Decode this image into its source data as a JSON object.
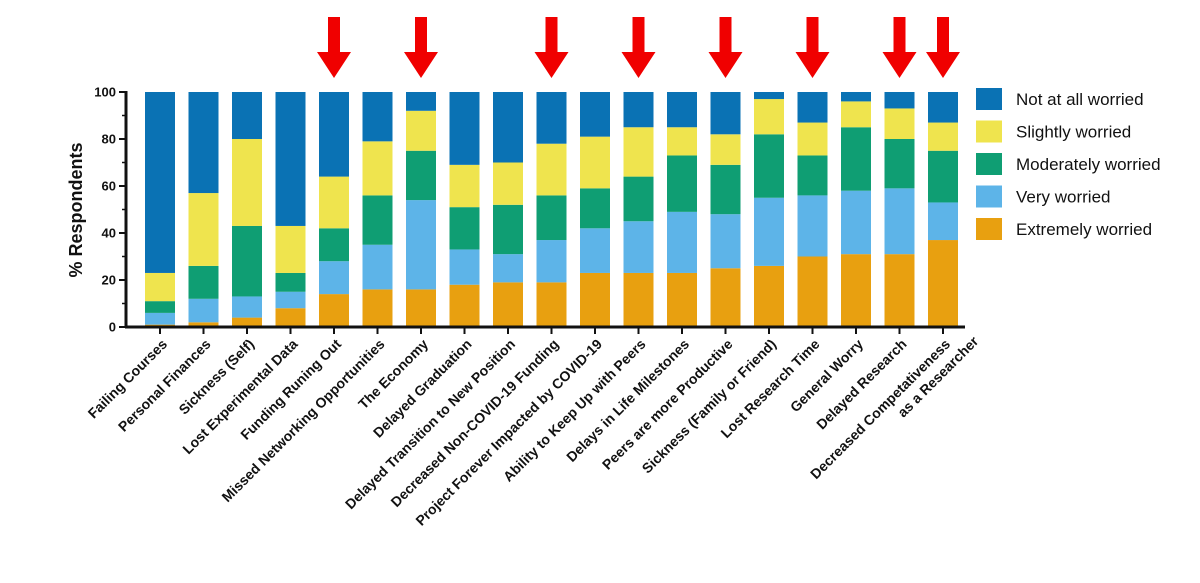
{
  "chart_data": {
    "type": "bar",
    "stacked": true,
    "ylabel": "% Respondents",
    "xlabel": "",
    "ylim": [
      0,
      100
    ],
    "yticks": [
      "0",
      "20",
      "40",
      "60",
      "80",
      "100"
    ],
    "legend_position": "right",
    "legend_order": [
      "Not at all worried",
      "Slightly worried",
      "Moderately worried",
      "Very worried",
      "Extremely worried"
    ],
    "categories": [
      "Failing Courses",
      "Personal Finances",
      "Sickness (Self)",
      "Lost Experimental Data",
      "Funding Runing Out",
      "Missed Networking Opportunities",
      "The Economy",
      "Delayed Graduation",
      "Delayed Transition to New Position",
      "Decreased Non-COVID-19 Funding",
      "Project Forever Impacted by COVID-19",
      "Ability to Keep Up with Peers",
      "Delays in Life Milestones",
      "Peers are more Productive",
      "Sickness (Family or Friend)",
      "Lost Research Time",
      "General Worry",
      "Delayed Research",
      "Decreased Competativeness\nas a Researcher"
    ],
    "series": [
      {
        "name": "Extremely worried",
        "color": "#E8A010",
        "values": [
          1,
          2,
          4,
          8,
          14,
          16,
          16,
          18,
          19,
          19,
          23,
          23,
          23,
          25,
          26,
          30,
          31,
          31,
          37
        ]
      },
      {
        "name": "Very worried",
        "color": "#5DB4E8",
        "values": [
          5,
          10,
          9,
          7,
          14,
          19,
          38,
          15,
          12,
          18,
          19,
          22,
          26,
          23,
          29,
          26,
          27,
          28,
          16
        ]
      },
      {
        "name": "Moderately worried",
        "color": "#0F9E73",
        "values": [
          5,
          14,
          30,
          8,
          14,
          21,
          21,
          18,
          21,
          19,
          17,
          19,
          24,
          21,
          27,
          17,
          27,
          21,
          22
        ]
      },
      {
        "name": "Slightly worried",
        "color": "#EFE44E",
        "values": [
          12,
          31,
          37,
          20,
          22,
          23,
          17,
          18,
          18,
          22,
          22,
          21,
          12,
          13,
          15,
          14,
          11,
          13,
          12
        ]
      },
      {
        "name": "Not at all worried",
        "color": "#0A72B4",
        "values": [
          77,
          43,
          20,
          57,
          36,
          21,
          8,
          31,
          30,
          22,
          19,
          15,
          15,
          18,
          3,
          13,
          4,
          7,
          13
        ]
      }
    ],
    "highlight_arrows": [
      4,
      6,
      9,
      11,
      13,
      15,
      17,
      18
    ],
    "arrow_color": "#F00000"
  }
}
